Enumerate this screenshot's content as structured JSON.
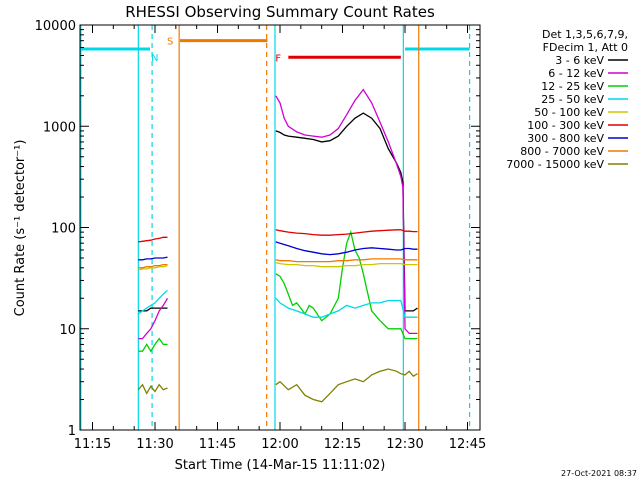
{
  "chart_data": {
    "type": "line",
    "title": "RHESSI Observing Summary Count Rates",
    "xlabel": "Start Time (14-Mar-15 11:11:02)",
    "ylabel": "Count Rate (s⁻¹ detector⁻¹)",
    "x_unit": "minutes after 11:00 UT",
    "xlim": [
      12,
      108
    ],
    "ylim": [
      1,
      10000
    ],
    "yscale": "log",
    "x_ticks": [
      {
        "value": 15,
        "label": "11:15"
      },
      {
        "value": 30,
        "label": "11:30"
      },
      {
        "value": 45,
        "label": "11:45"
      },
      {
        "value": 60,
        "label": "12:00"
      },
      {
        "value": 75,
        "label": "12:15"
      },
      {
        "value": 90,
        "label": "12:30"
      },
      {
        "value": 105,
        "label": "12:45"
      }
    ],
    "y_ticks": [
      {
        "value": 1,
        "label": "1"
      },
      {
        "value": 10,
        "label": "10"
      },
      {
        "value": 100,
        "label": "100"
      },
      {
        "value": 1000,
        "label": "1000"
      },
      {
        "value": 10000,
        "label": "10000"
      }
    ],
    "legend_header": [
      "Det 1,3,5,6,7,9,",
      "FDecim 1, Att 0"
    ],
    "legend_position": "right",
    "series": [
      {
        "name": "3 - 6 keV",
        "color": "#000000",
        "x": [
          26,
          27,
          28,
          29,
          30,
          31,
          32,
          33,
          59,
          60,
          61,
          62,
          64,
          66,
          68,
          70,
          72,
          74,
          76,
          78,
          80,
          82,
          84,
          86,
          88,
          89,
          89.5,
          90,
          91,
          92,
          93
        ],
        "y": [
          15,
          15,
          15,
          16,
          16,
          16,
          16,
          16,
          900,
          870,
          820,
          800,
          780,
          760,
          740,
          700,
          720,
          800,
          1000,
          1200,
          1350,
          1200,
          950,
          600,
          430,
          350,
          280,
          15,
          15,
          15,
          16
        ]
      },
      {
        "name": "6 - 12 keV",
        "color": "#d000d0",
        "x": [
          26,
          27,
          28,
          29,
          30,
          31,
          32,
          33,
          59,
          60,
          61,
          62,
          64,
          66,
          68,
          70,
          72,
          74,
          76,
          78,
          80,
          82,
          84,
          86,
          88,
          89,
          89.5,
          90,
          91,
          92,
          93
        ],
        "y": [
          8,
          8,
          9,
          10,
          12,
          15,
          17,
          20,
          2000,
          1700,
          1200,
          1000,
          880,
          820,
          800,
          780,
          820,
          950,
          1300,
          1800,
          2300,
          1700,
          1100,
          700,
          420,
          320,
          250,
          10,
          9,
          9,
          9
        ]
      },
      {
        "name": "12 - 25 keV",
        "color": "#00d000",
        "x": [
          26,
          27,
          28,
          29,
          30,
          31,
          32,
          33,
          59,
          60,
          61,
          62,
          63,
          64,
          65,
          66,
          67,
          68,
          70,
          72,
          74,
          75,
          76,
          77,
          78,
          79,
          80,
          82,
          84,
          86,
          88,
          89,
          90,
          91,
          92,
          93
        ],
        "y": [
          6,
          6,
          7,
          6,
          7,
          8,
          7,
          7,
          35,
          33,
          28,
          22,
          17,
          18,
          16,
          14,
          17,
          16,
          12,
          14,
          20,
          40,
          70,
          90,
          60,
          50,
          35,
          15,
          12,
          10,
          10,
          10,
          8,
          8,
          8,
          8
        ]
      },
      {
        "name": "25 - 50 keV",
        "color": "#00d8e8",
        "x": [
          26,
          27,
          28,
          29,
          30,
          31,
          32,
          33,
          59,
          60,
          62,
          64,
          66,
          68,
          70,
          72,
          74,
          76,
          78,
          80,
          82,
          84,
          86,
          88,
          89,
          90,
          91,
          92,
          93
        ],
        "y": [
          14,
          15,
          16,
          17,
          18,
          20,
          22,
          24,
          20,
          18,
          16,
          15,
          14,
          13,
          13,
          14,
          15,
          17,
          16,
          17,
          18,
          18,
          19,
          19,
          19,
          13,
          13,
          13,
          13
        ]
      },
      {
        "name": "50 - 100 keV",
        "color": "#c8c800",
        "x": [
          26,
          27,
          28,
          29,
          30,
          31,
          32,
          33,
          59,
          60,
          62,
          64,
          66,
          68,
          70,
          72,
          74,
          76,
          78,
          80,
          82,
          84,
          86,
          88,
          89,
          90,
          91,
          92,
          93
        ],
        "y": [
          38,
          39,
          39,
          40,
          40,
          41,
          41,
          42,
          45,
          44,
          43,
          43,
          42,
          42,
          41,
          41,
          41,
          42,
          42,
          43,
          43,
          44,
          44,
          44,
          44,
          43,
          43,
          43,
          43
        ]
      },
      {
        "name": "100 - 300 keV",
        "color": "#e00000",
        "x": [
          26,
          27,
          28,
          29,
          30,
          31,
          32,
          33,
          59,
          60,
          62,
          64,
          66,
          68,
          70,
          72,
          74,
          76,
          78,
          80,
          82,
          84,
          86,
          88,
          89,
          90,
          91,
          92,
          93
        ],
        "y": [
          72,
          73,
          74,
          75,
          77,
          78,
          80,
          80,
          95,
          93,
          90,
          88,
          87,
          85,
          84,
          84,
          85,
          86,
          88,
          90,
          92,
          93,
          94,
          95,
          95,
          92,
          92,
          91,
          91
        ]
      },
      {
        "name": "300 - 800 keV",
        "color": "#0000d0",
        "x": [
          26,
          27,
          28,
          29,
          30,
          31,
          32,
          33,
          59,
          60,
          62,
          64,
          66,
          68,
          70,
          72,
          74,
          76,
          78,
          80,
          82,
          84,
          86,
          88,
          89,
          90,
          91,
          92,
          93
        ],
        "y": [
          48,
          48,
          49,
          49,
          50,
          50,
          50,
          51,
          72,
          70,
          66,
          62,
          59,
          57,
          55,
          54,
          55,
          57,
          60,
          62,
          63,
          62,
          61,
          60,
          60,
          62,
          62,
          61,
          61
        ]
      },
      {
        "name": "800 - 7000 keV",
        "color": "#f07800",
        "x": [
          26,
          27,
          28,
          29,
          30,
          31,
          32,
          33,
          59,
          60,
          62,
          64,
          66,
          68,
          70,
          72,
          74,
          76,
          78,
          80,
          82,
          84,
          86,
          88,
          89,
          90,
          91,
          92,
          93
        ],
        "y": [
          40,
          40,
          41,
          41,
          42,
          42,
          43,
          43,
          48,
          47,
          47,
          46,
          46,
          46,
          46,
          46,
          47,
          47,
          48,
          48,
          49,
          49,
          49,
          49,
          49,
          48,
          48,
          48,
          48
        ]
      },
      {
        "name": "7000 - 15000 keV",
        "color": "#808000",
        "x": [
          26,
          27,
          28,
          29,
          30,
          31,
          32,
          33,
          59,
          60,
          62,
          64,
          66,
          68,
          70,
          72,
          74,
          76,
          78,
          80,
          82,
          84,
          86,
          88,
          89,
          90,
          91,
          92,
          93
        ],
        "y": [
          2.5,
          2.8,
          2.3,
          2.7,
          2.4,
          2.8,
          2.5,
          2.6,
          2.8,
          3.0,
          2.5,
          2.8,
          2.2,
          2.0,
          1.9,
          2.3,
          2.8,
          3.0,
          3.2,
          3.0,
          3.5,
          3.8,
          4.0,
          3.8,
          3.6,
          3.5,
          3.8,
          3.4,
          3.6
        ]
      }
    ],
    "flags": [
      {
        "label": "N",
        "color": "#00d8e8",
        "y": 5800,
        "segments": [
          [
            12,
            28.8
          ],
          [
            90,
            105.5
          ]
        ]
      },
      {
        "label": "S",
        "color": "#f07800",
        "y": 7000,
        "segments": [
          [
            36,
            57
          ]
        ]
      },
      {
        "label": "F",
        "color": "#e00000",
        "y": 4800,
        "segments": [
          [
            62,
            89
          ]
        ]
      }
    ],
    "vertical_lines": [
      {
        "x": 12.2,
        "color": "#00d8e8",
        "style": "solid"
      },
      {
        "x": 26,
        "color": "#00d8e8",
        "style": "solid"
      },
      {
        "x": 29.3,
        "color": "#00d8e8",
        "style": "dashed"
      },
      {
        "x": 35.8,
        "color": "#f07800",
        "style": "solid"
      },
      {
        "x": 56.8,
        "color": "#f07800",
        "style": "dashed"
      },
      {
        "x": 58.8,
        "color": "#00d8e8",
        "style": "solid"
      },
      {
        "x": 89.6,
        "color": "#00d8e8",
        "style": "solid"
      },
      {
        "x": 93.3,
        "color": "#f07800",
        "style": "solid"
      },
      {
        "x": 105.5,
        "color": "#00d8e8",
        "style": "dashed"
      }
    ],
    "grid": false
  },
  "footer": {
    "timestamp": "27-Oct-2021 08:37"
  }
}
